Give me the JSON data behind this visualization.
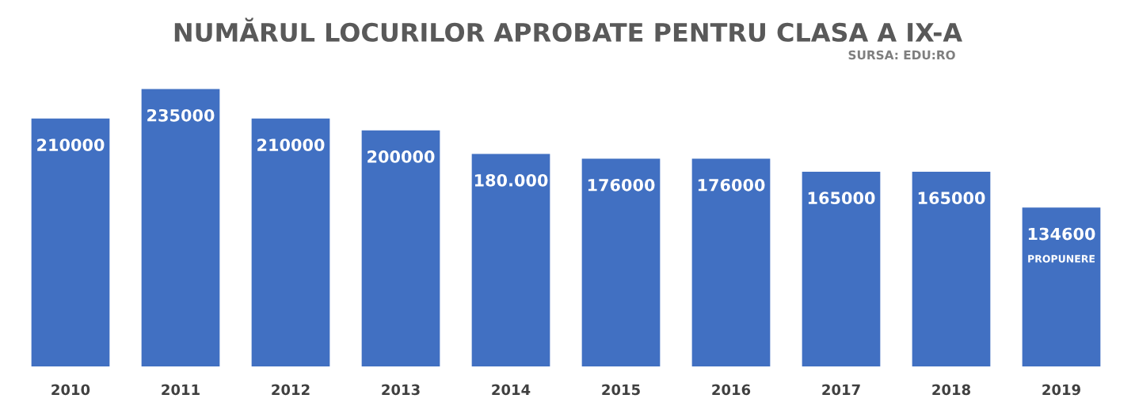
{
  "chart_data": {
    "type": "bar",
    "title": "NUMĂRUL LOCURILOR APROBATE PENTRU CLASA A IX-A",
    "categories": [
      "2010",
      "2011",
      "2012",
      "2013",
      "2014",
      "2015",
      "2016",
      "2017",
      "2018",
      "2019"
    ],
    "values": [
      210000,
      235000,
      210000,
      200000,
      180000,
      176000,
      176000,
      165000,
      165000,
      134600
    ],
    "value_labels": [
      "210000",
      "235000",
      "210000",
      "200000",
      "180.000",
      "176000",
      "176000",
      "165000",
      "165000",
      "134600"
    ],
    "color": "#4170c2",
    "annotations": [
      "SURSA: EDU:RO",
      "PROPUNERE"
    ],
    "grid": false,
    "legend": false
  }
}
